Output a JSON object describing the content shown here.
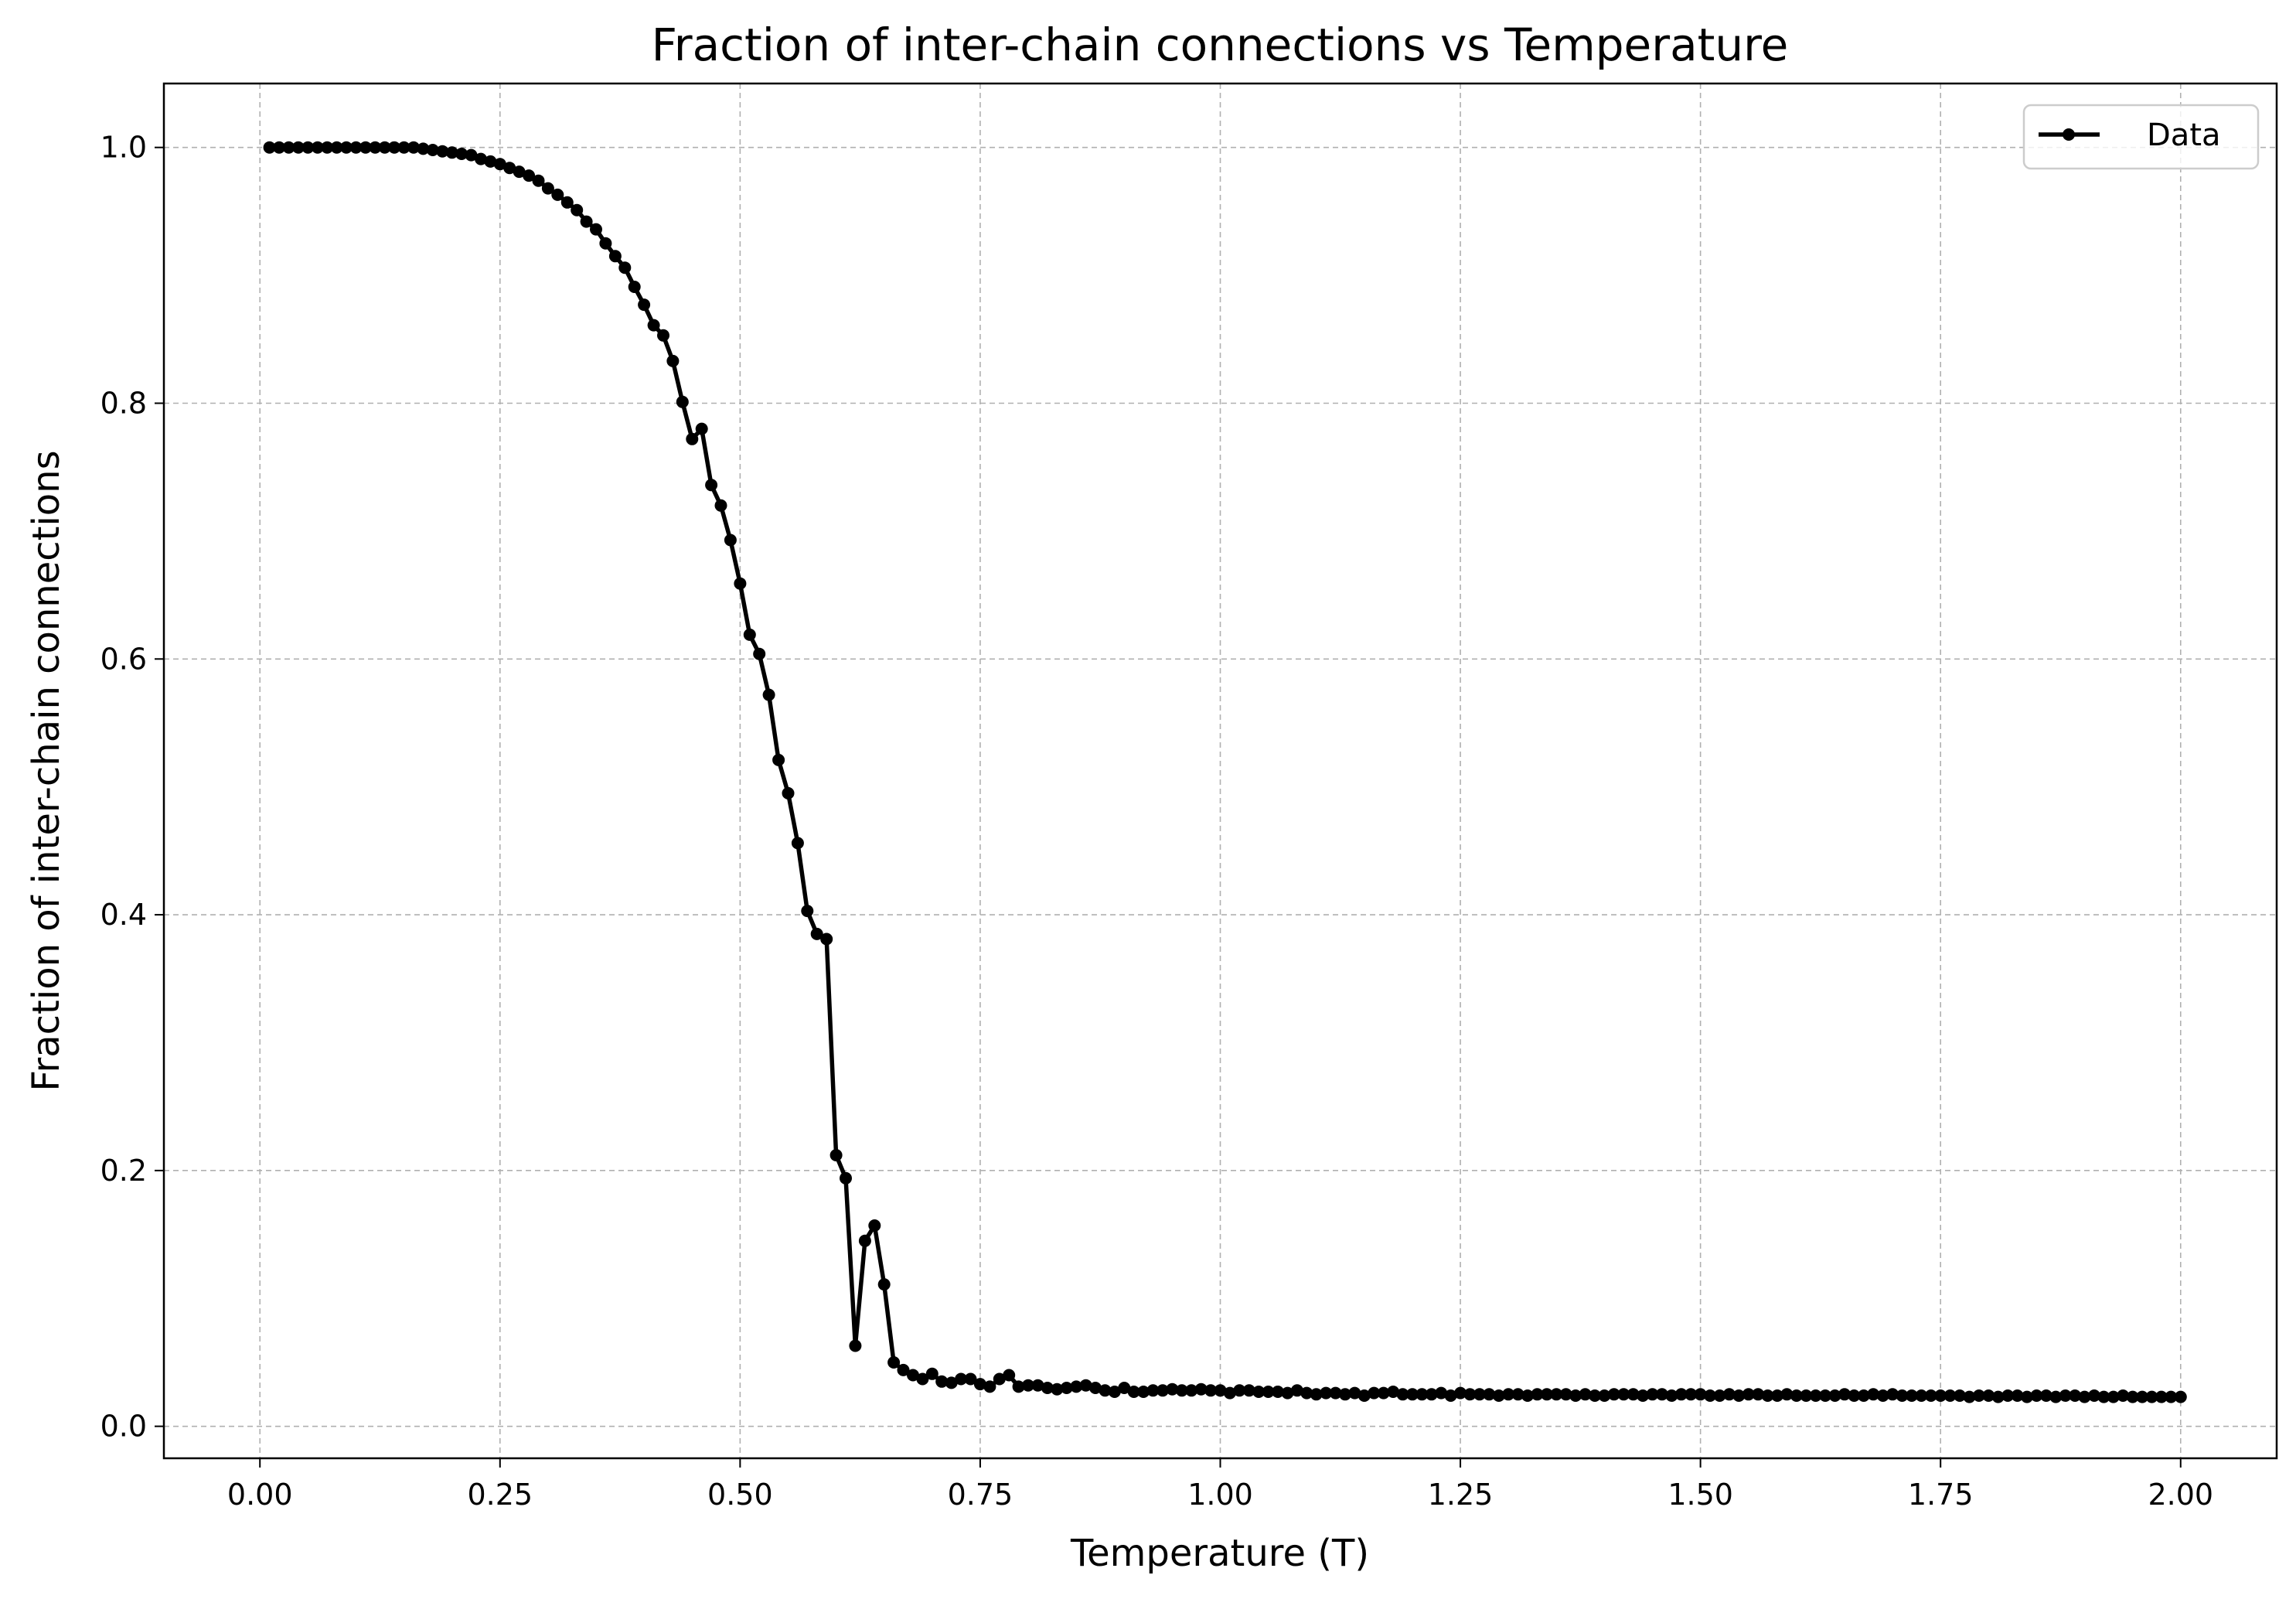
{
  "chart_data": {
    "type": "line",
    "title": "Fraction of inter-chain connections vs Temperature",
    "xlabel": "Temperature (T)",
    "ylabel": "Fraction of inter-chain connections",
    "xlim": [
      -0.1,
      2.1
    ],
    "ylim": [
      -0.025,
      1.05
    ],
    "grid": true,
    "legend_position": "top-right",
    "x_ticks": [
      0.0,
      0.25,
      0.5,
      0.75,
      1.0,
      1.25,
      1.5,
      1.75,
      2.0
    ],
    "x_tick_labels": [
      "0.00",
      "0.25",
      "0.50",
      "0.75",
      "1.00",
      "1.25",
      "1.50",
      "1.75",
      "2.00"
    ],
    "y_ticks": [
      0.0,
      0.2,
      0.4,
      0.6,
      0.8,
      1.0
    ],
    "y_tick_labels": [
      "0.0",
      "0.2",
      "0.4",
      "0.6",
      "0.8",
      "1.0"
    ],
    "colors": {
      "series": "#000000",
      "grid": "#b0b0b0"
    },
    "series": [
      {
        "name": "Data",
        "marker": "circle",
        "x": [
          0.01,
          0.02,
          0.03,
          0.04,
          0.05,
          0.06,
          0.07,
          0.08,
          0.09,
          0.1,
          0.11,
          0.12,
          0.13,
          0.14,
          0.15,
          0.16,
          0.17,
          0.18,
          0.19,
          0.2,
          0.21,
          0.22,
          0.23,
          0.24,
          0.25,
          0.26,
          0.27,
          0.28,
          0.29,
          0.3,
          0.31,
          0.32,
          0.33,
          0.34,
          0.35,
          0.36,
          0.37,
          0.38,
          0.39,
          0.4,
          0.41,
          0.42,
          0.43,
          0.44,
          0.45,
          0.46,
          0.47,
          0.48,
          0.49,
          0.5,
          0.51,
          0.52,
          0.53,
          0.54,
          0.55,
          0.56,
          0.57,
          0.58,
          0.59,
          0.6,
          0.61,
          0.62,
          0.63,
          0.64,
          0.65,
          0.66,
          0.67,
          0.68,
          0.69,
          0.7,
          0.71,
          0.72,
          0.73,
          0.74,
          0.75,
          0.76,
          0.77,
          0.78,
          0.79,
          0.8,
          0.81,
          0.82,
          0.83,
          0.84,
          0.85,
          0.86,
          0.87,
          0.88,
          0.89,
          0.9,
          0.91,
          0.92,
          0.93,
          0.94,
          0.95,
          0.96,
          0.97,
          0.98,
          0.99,
          1.0,
          1.01,
          1.02,
          1.03,
          1.04,
          1.05,
          1.06,
          1.07,
          1.08,
          1.09,
          1.1,
          1.11,
          1.12,
          1.13,
          1.14,
          1.15,
          1.16,
          1.17,
          1.18,
          1.19,
          1.2,
          1.21,
          1.22,
          1.23,
          1.24,
          1.25,
          1.26,
          1.27,
          1.28,
          1.29,
          1.3,
          1.31,
          1.32,
          1.33,
          1.34,
          1.35,
          1.36,
          1.37,
          1.38,
          1.39,
          1.4,
          1.41,
          1.42,
          1.43,
          1.44,
          1.45,
          1.46,
          1.47,
          1.48,
          1.49,
          1.5,
          1.51,
          1.52,
          1.53,
          1.54,
          1.55,
          1.56,
          1.57,
          1.58,
          1.59,
          1.6,
          1.61,
          1.62,
          1.63,
          1.64,
          1.65,
          1.66,
          1.67,
          1.68,
          1.69,
          1.7,
          1.71,
          1.72,
          1.73,
          1.74,
          1.75,
          1.76,
          1.77,
          1.78,
          1.79,
          1.8,
          1.81,
          1.82,
          1.83,
          1.84,
          1.85,
          1.86,
          1.87,
          1.88,
          1.89,
          1.9,
          1.91,
          1.92,
          1.93,
          1.94,
          1.95,
          1.96,
          1.97,
          1.98,
          1.99,
          2.0
        ],
        "y": [
          1.0,
          1.0,
          1.0,
          1.0,
          1.0,
          1.0,
          1.0,
          1.0,
          1.0,
          1.0,
          1.0,
          1.0,
          1.0,
          1.0,
          1.0,
          1.0,
          0.999,
          0.998,
          0.997,
          0.996,
          0.995,
          0.994,
          0.991,
          0.989,
          0.987,
          0.984,
          0.981,
          0.978,
          0.974,
          0.968,
          0.963,
          0.957,
          0.951,
          0.942,
          0.936,
          0.925,
          0.915,
          0.906,
          0.891,
          0.877,
          0.861,
          0.853,
          0.833,
          0.801,
          0.772,
          0.78,
          0.736,
          0.72,
          0.693,
          0.659,
          0.619,
          0.604,
          0.572,
          0.521,
          0.495,
          0.456,
          0.403,
          0.385,
          0.381,
          0.212,
          0.194,
          0.063,
          0.145,
          0.157,
          0.111,
          0.05,
          0.044,
          0.04,
          0.037,
          0.041,
          0.035,
          0.034,
          0.037,
          0.037,
          0.033,
          0.031,
          0.037,
          0.04,
          0.031,
          0.032,
          0.032,
          0.03,
          0.029,
          0.03,
          0.031,
          0.032,
          0.03,
          0.028,
          0.027,
          0.03,
          0.027,
          0.027,
          0.028,
          0.028,
          0.029,
          0.028,
          0.028,
          0.029,
          0.028,
          0.028,
          0.026,
          0.028,
          0.028,
          0.027,
          0.027,
          0.027,
          0.026,
          0.028,
          0.026,
          0.025,
          0.026,
          0.026,
          0.025,
          0.026,
          0.024,
          0.026,
          0.026,
          0.027,
          0.025,
          0.025,
          0.025,
          0.025,
          0.026,
          0.024,
          0.026,
          0.025,
          0.025,
          0.025,
          0.024,
          0.025,
          0.025,
          0.024,
          0.025,
          0.025,
          0.025,
          0.025,
          0.024,
          0.025,
          0.024,
          0.024,
          0.025,
          0.025,
          0.025,
          0.024,
          0.025,
          0.025,
          0.024,
          0.025,
          0.025,
          0.025,
          0.024,
          0.024,
          0.025,
          0.024,
          0.025,
          0.025,
          0.024,
          0.024,
          0.025,
          0.024,
          0.024,
          0.024,
          0.024,
          0.024,
          0.025,
          0.024,
          0.024,
          0.025,
          0.024,
          0.025,
          0.024,
          0.024,
          0.024,
          0.024,
          0.024,
          0.024,
          0.024,
          0.023,
          0.024,
          0.024,
          0.023,
          0.024,
          0.024,
          0.023,
          0.024,
          0.024,
          0.023,
          0.024,
          0.024,
          0.023,
          0.024,
          0.023,
          0.023,
          0.024,
          0.023,
          0.023,
          0.023,
          0.023,
          0.023,
          0.023
        ]
      }
    ]
  }
}
